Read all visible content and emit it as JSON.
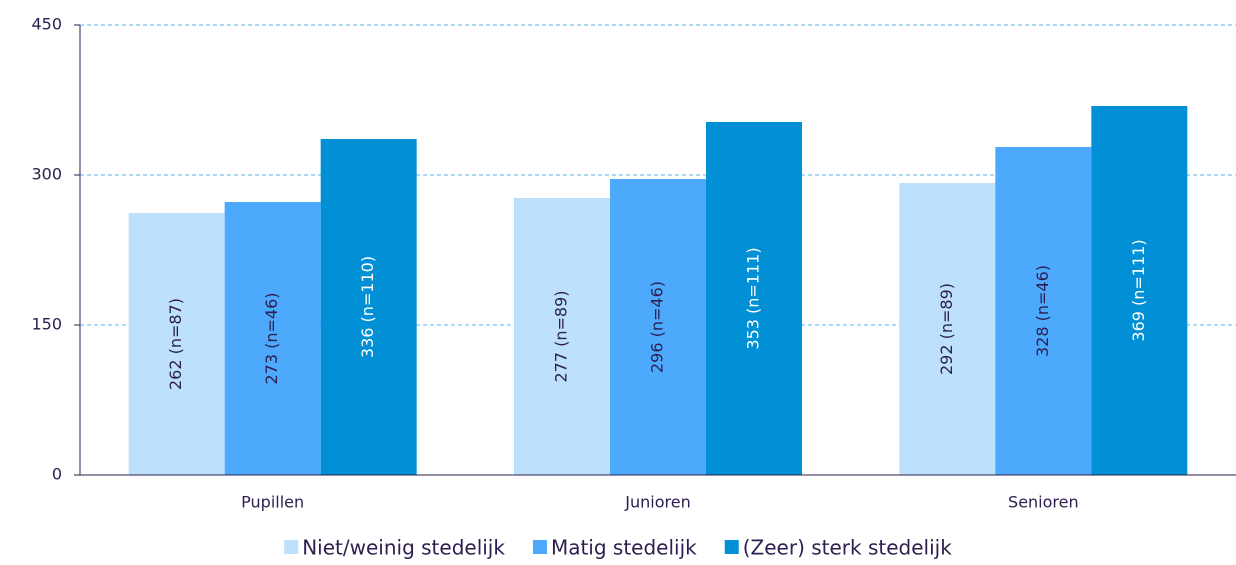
{
  "chart_data": {
    "type": "bar",
    "categories": [
      "Pupillen",
      "Junioren",
      "Senioren"
    ],
    "series": [
      {
        "name": "Niet/weinig stedelijk",
        "color": "#bde0fd",
        "label_color": "#2d1e4f",
        "values": [
          262,
          277,
          292
        ],
        "value_labels": [
          "262 (n=87)",
          "277 (n=89)",
          "292 (n=89)"
        ]
      },
      {
        "name": "Matig stedelijk",
        "color": "#4da9fc",
        "label_color": "#2d1e4f",
        "values": [
          273,
          296,
          328
        ],
        "value_labels": [
          "273 (n=46)",
          "296 (n=46)",
          "328 (n=46)"
        ]
      },
      {
        "name": "(Zeer) sterk stedelijk",
        "color": "#0190d6",
        "label_color": "#ffffff",
        "values": [
          336,
          353,
          369
        ],
        "value_labels": [
          "336 (n=110)",
          "353 (n=111)",
          "369 (n=111)"
        ]
      }
    ],
    "ylim": [
      0,
      450
    ],
    "yticks": [
      0,
      150,
      300,
      450
    ],
    "grid": true,
    "legend": "bottom"
  }
}
